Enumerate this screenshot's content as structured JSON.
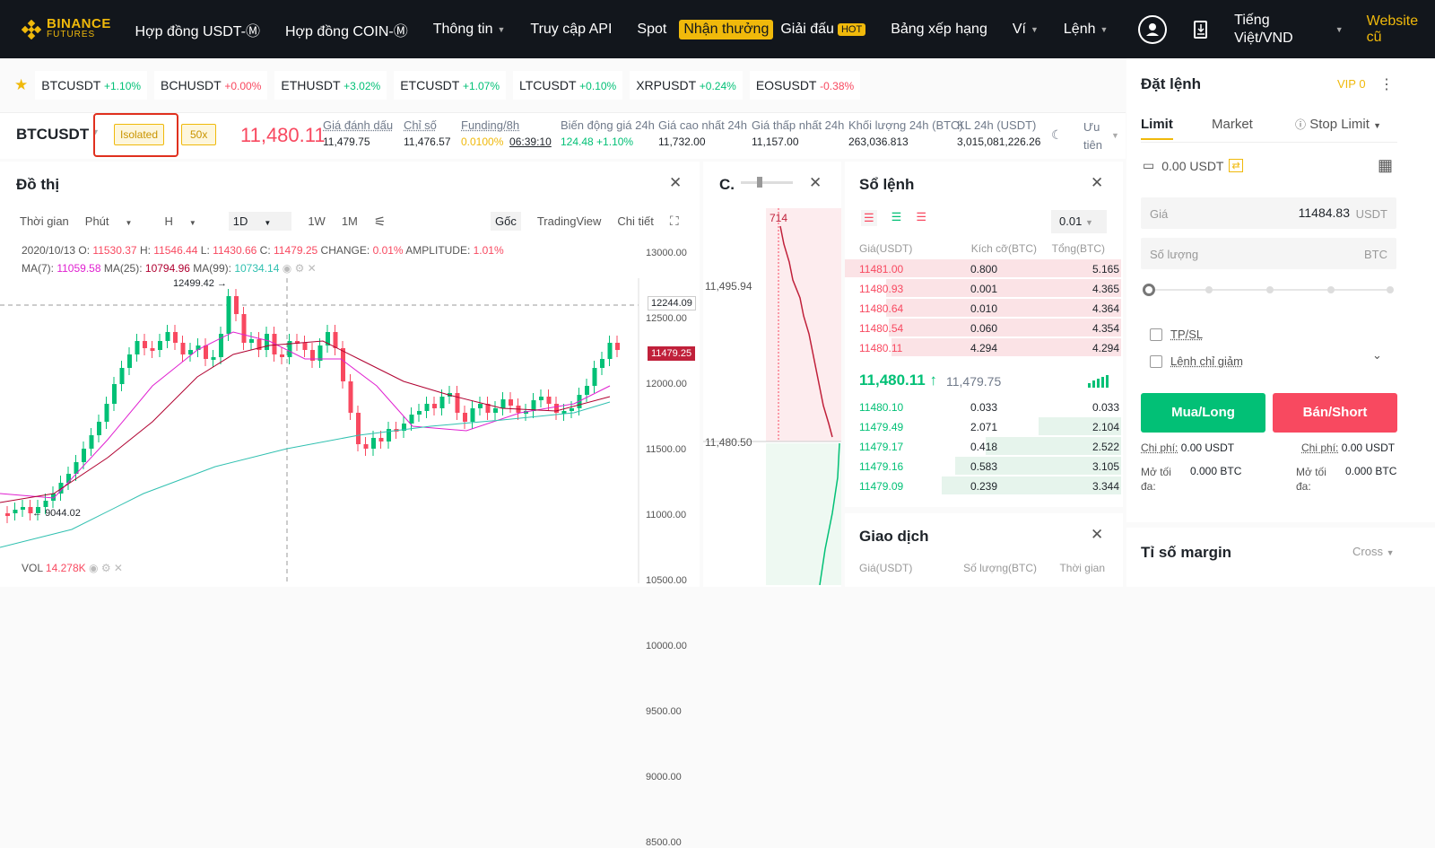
{
  "nav": {
    "logo_top": "BINANCE",
    "logo_bottom": "FUTURES",
    "items": [
      "Hợp đồng USDT-Ⓜ",
      "Hợp đồng COIN-Ⓜ",
      "Thông tin",
      "Truy cập API",
      "Spot",
      "Nhận thưởng",
      "Giải đấu",
      "Bảng xếp hạng",
      "Ví",
      "Lệnh"
    ],
    "hot": "HOT",
    "language": "Tiếng Việt/VND",
    "website": "Website cũ"
  },
  "tickers": [
    {
      "sym": "BTCUSDT",
      "chg": "+1.10%"
    },
    {
      "sym": "BCHUSDT",
      "chg": "+0.00%"
    },
    {
      "sym": "ETHUSDT",
      "chg": "+3.02%"
    },
    {
      "sym": "ETCUSDT",
      "chg": "+1.07%"
    },
    {
      "sym": "LTCUSDT",
      "chg": "+0.10%"
    },
    {
      "sym": "XRPUSDT",
      "chg": "+0.24%"
    },
    {
      "sym": "EOSUSDT",
      "chg": "-0.38%"
    }
  ],
  "symbol": {
    "name": "BTCUSDT",
    "margin_mode": "Isolated",
    "leverage": "50x",
    "last_price": "11,480.11",
    "mark_label": "Giá đánh dấu",
    "mark_value": "11,479.75",
    "index_label": "Chỉ số",
    "index_value": "11,476.57",
    "funding_label": "Funding/8h",
    "funding_rate": "0.0100%",
    "funding_countdown": "06:39:10",
    "change_label": "Biến động giá 24h",
    "change_value": "124.48",
    "change_pct": "+1.10%",
    "high_label": "Giá cao nhất 24h",
    "high_value": "11,732.00",
    "low_label": "Giá thấp nhất 24h",
    "low_value": "11,157.00",
    "vol_btc_label": "Khối lượng 24h (BTC)",
    "vol_btc_value": "263,036.813",
    "vol_usdt_label": "KL 24h (USDT)",
    "vol_usdt_value": "3,015,081,226.26",
    "priority_label": "Ưu tiên"
  },
  "chart": {
    "title": "Đồ thị",
    "tools": [
      "Thời gian",
      "Phút",
      "H",
      "1D",
      "1W",
      "1M"
    ],
    "view_tabs": [
      "Gốc",
      "TradingView",
      "Chi tiết"
    ],
    "ohlc": {
      "date": "2020/10/13",
      "o_label": "O:",
      "o": "11530.37",
      "h_label": "H:",
      "h": "11546.44",
      "l_label": "L:",
      "l": "11430.66",
      "c_label": "C:",
      "c": "11479.25",
      "change_label": "CHANGE:",
      "change": "0.01%",
      "amp_label": "AMPLITUDE:",
      "amp": "1.01%"
    },
    "ma7_label": "MA(7):",
    "ma7": "11059.58",
    "ma25_label": "MA(25):",
    "ma25": "10794.96",
    "ma99_label": "MA(99):",
    "ma99": "10734.14",
    "max_label": "12499.42",
    "min_label": "9044.02",
    "cross_label": "12244.09",
    "last_label": "11479.25",
    "y_ticks": [
      "13000.00",
      "12500.00",
      "12000.00",
      "11500.00",
      "11000.00",
      "10500.00",
      "10000.00",
      "9500.00",
      "9000.00",
      "8500.00"
    ],
    "vol_label": "VOL",
    "vol_value": "14.278K"
  },
  "depth": {
    "title": "C.",
    "top_label": "714",
    "price_hi": "11,495.94",
    "price_lo": "11,480.50"
  },
  "orderbook": {
    "title": "Sổ lệnh",
    "precision": "0.01",
    "headers": [
      "Giá(USDT)",
      "Kích cỡ(BTC)",
      "Tổng(BTC)"
    ],
    "asks": [
      {
        "price": "11481.00",
        "size": "0.800",
        "total": "5.165",
        "fill": 1.0
      },
      {
        "price": "11480.93",
        "size": "0.001",
        "total": "4.365",
        "fill": 0.85
      },
      {
        "price": "11480.64",
        "size": "0.010",
        "total": "4.364",
        "fill": 0.85
      },
      {
        "price": "11480.54",
        "size": "0.060",
        "total": "4.354",
        "fill": 0.84
      },
      {
        "price": "11480.11",
        "size": "4.294",
        "total": "4.294",
        "fill": 0.83
      }
    ],
    "mid_price": "11,480.11",
    "mid_arrow": "↑",
    "mark_price": "11,479.75",
    "bids": [
      {
        "price": "11480.10",
        "size": "0.033",
        "total": "0.033",
        "fill": 0.0
      },
      {
        "price": "11479.49",
        "size": "2.071",
        "total": "2.104",
        "fill": 0.3
      },
      {
        "price": "11479.17",
        "size": "0.418",
        "total": "2.522",
        "fill": 0.49
      },
      {
        "price": "11479.16",
        "size": "0.583",
        "total": "3.105",
        "fill": 0.6
      },
      {
        "price": "11479.09",
        "size": "0.239",
        "total": "3.344",
        "fill": 0.65
      }
    ]
  },
  "trades": {
    "title": "Giao dịch",
    "headers": [
      "Giá(USDT)",
      "Số lượng(BTC)",
      "Thời gian"
    ]
  },
  "order_form": {
    "title": "Đặt lệnh",
    "vip": "VIP 0",
    "tabs": [
      "Limit",
      "Market",
      "Stop Limit"
    ],
    "balance": "0.00 USDT",
    "price_label": "Giá",
    "price_value": "11484.83",
    "price_unit": "USDT",
    "qty_label": "Số lượng",
    "qty_unit": "BTC",
    "tpsl": "TP/SL",
    "reduce_only": "Lệnh chỉ giảm",
    "buy": "Mua/Long",
    "sell": "Bán/Short",
    "cost_label": "Chi phí:",
    "cost_buy": "0.00 USDT",
    "cost_sell": "0.00 USDT",
    "max_label": "Mở tối đa:",
    "max_buy": "0.000 BTC",
    "max_sell": "0.000 BTC",
    "margin_title": "Tỉ số margin",
    "margin_mode": "Cross"
  },
  "colors": {
    "up": "#02c076",
    "down": "#f84960",
    "brand": "#f0b90b"
  }
}
